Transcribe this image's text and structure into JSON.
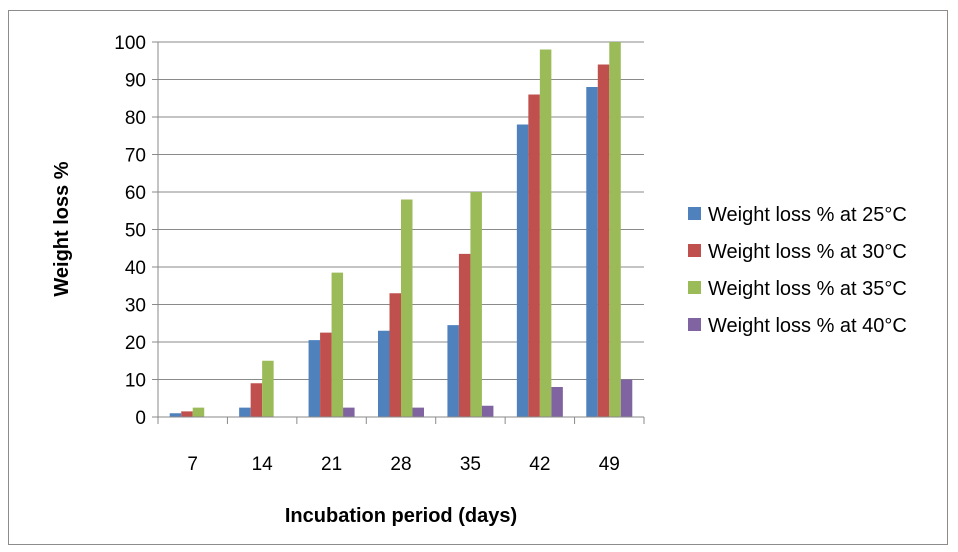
{
  "chart_data": {
    "type": "bar",
    "categories": [
      "7",
      "14",
      "21",
      "28",
      "35",
      "42",
      "49"
    ],
    "series": [
      {
        "name": "Weight loss % at 25°C",
        "color": "#4f81bd",
        "values": [
          1,
          2.5,
          20.5,
          23,
          24.5,
          78,
          88
        ]
      },
      {
        "name": "Weight loss % at 30°C",
        "color": "#c0504d",
        "values": [
          1.5,
          9,
          22.5,
          33,
          43.5,
          86,
          94
        ]
      },
      {
        "name": "Weight loss % at 35°C",
        "color": "#9bbb59",
        "values": [
          2.5,
          15,
          38.5,
          58,
          60,
          98,
          100
        ]
      },
      {
        "name": "Weight loss % at 40°C",
        "color": "#8064a2",
        "values": [
          0,
          0,
          2.5,
          2.5,
          3,
          8,
          10
        ]
      }
    ],
    "title": "",
    "xlabel": "Incubation period (days)",
    "ylabel": "Weight loss %",
    "ylim": [
      0,
      100
    ],
    "yticks": [
      "0",
      "10",
      "20",
      "30",
      "40",
      "50",
      "60",
      "70",
      "80",
      "90",
      "100"
    ],
    "grid": true,
    "legend_position": "right"
  }
}
